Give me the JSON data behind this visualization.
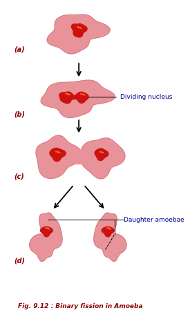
{
  "title": "Fig. 9.12 : Binary fission in Amoeba",
  "title_color": "#8B0000",
  "title_fontsize": 6.5,
  "label_a": "(a)",
  "label_b": "(b)",
  "label_c": "(c)",
  "label_d": "(d)",
  "label_color": "#8B0000",
  "label_fontsize": 7,
  "annotation_dividing": "Dividing nucleus",
  "annotation_daughter": "Daughter amoebae",
  "annotation_color": "#00008B",
  "annotation_fontsize": 6.5,
  "body_color": "#E8939A",
  "body_edge_color": "#C06070",
  "nucleus_color": "#CC1111",
  "nucleus_bright": "#FF7722",
  "background_color": "#FFFFFF",
  "arrow_color": "#000000"
}
